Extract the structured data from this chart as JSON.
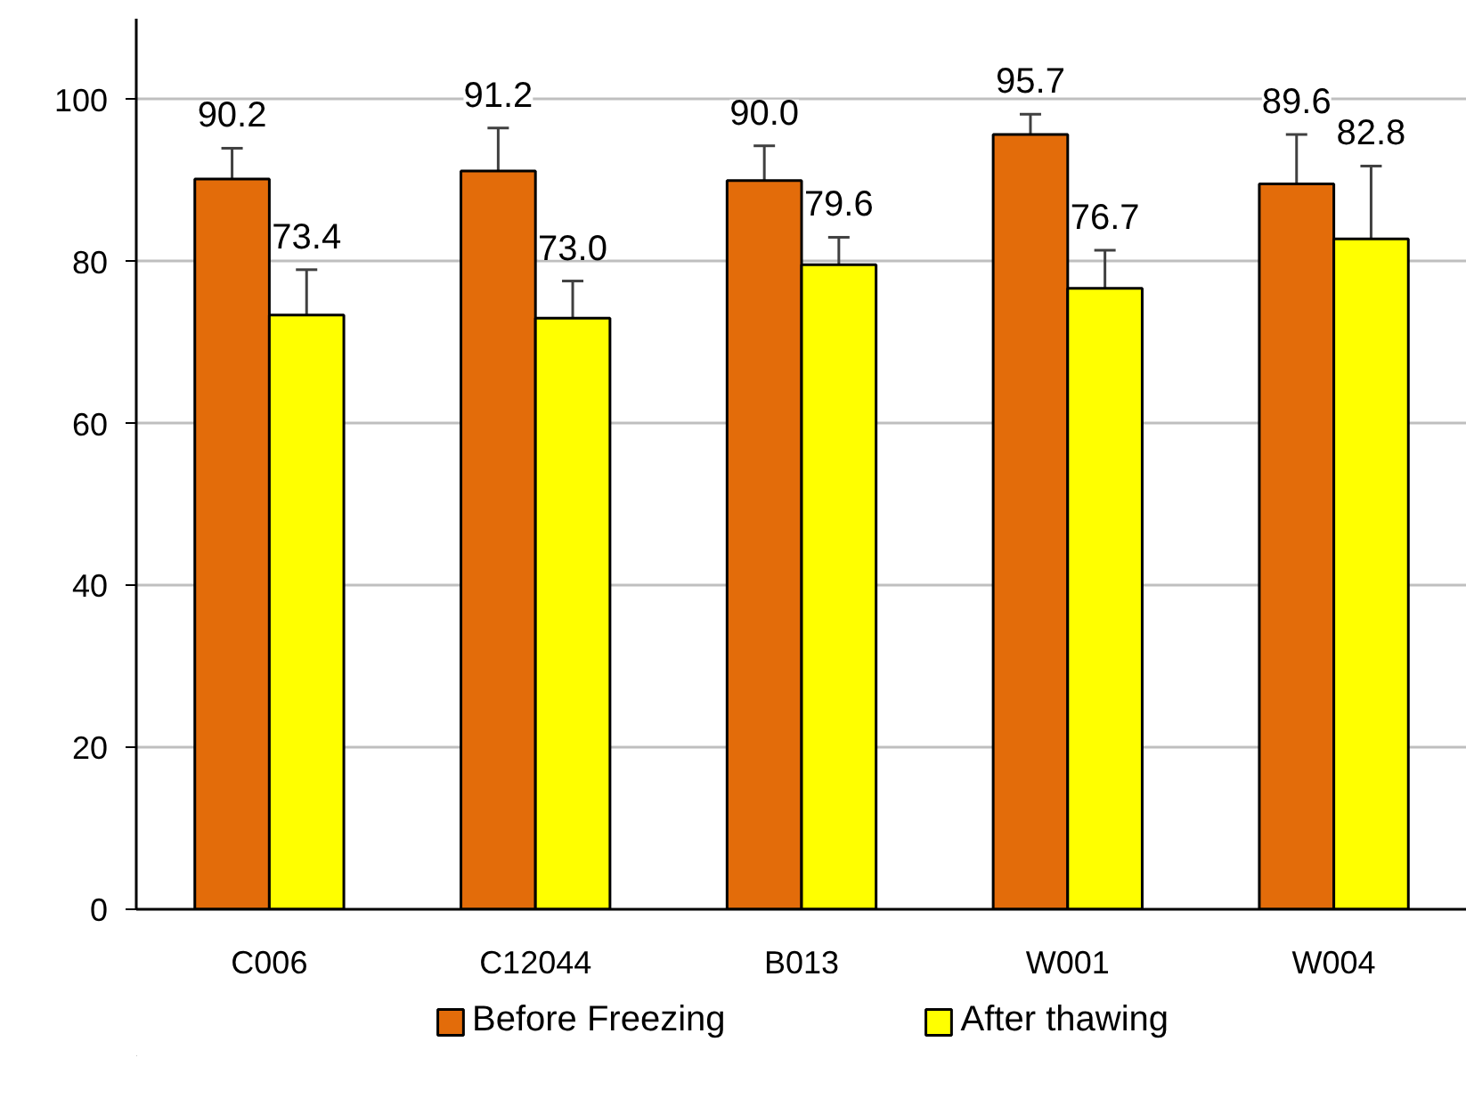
{
  "chart_data": {
    "type": "bar",
    "categories": [
      "C006",
      "C12044",
      "B013",
      "W001",
      "W004"
    ],
    "series": [
      {
        "name": "Before Freezing",
        "color": "#e36c0a",
        "values": [
          90.2,
          91.2,
          90.0,
          95.7,
          89.6
        ],
        "errors": [
          3.8,
          5.3,
          4.3,
          2.5,
          6.1
        ],
        "value_labels": [
          "90.2",
          "91.2",
          "90.0",
          "95.7",
          "89.6"
        ]
      },
      {
        "name": "After thawing",
        "color": "#ffff00",
        "values": [
          73.4,
          73.0,
          79.6,
          76.7,
          82.8
        ],
        "errors": [
          5.6,
          4.6,
          3.4,
          4.7,
          9.0
        ],
        "value_labels": [
          "73.4",
          "73.0",
          "79.6",
          "76.7",
          "82.8"
        ]
      }
    ],
    "ylim": [
      0,
      110
    ],
    "yticks": [
      0,
      20,
      40,
      60,
      80,
      100
    ],
    "grid": "y",
    "legend": "bottom",
    "data_labels": true
  }
}
